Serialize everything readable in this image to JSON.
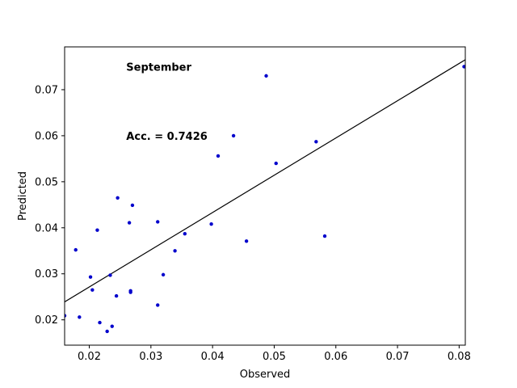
{
  "chart_data": {
    "type": "scatter",
    "xlabel": "Observed",
    "ylabel": "Predicted",
    "xlim": [
      0.016,
      0.081
    ],
    "ylim": [
      0.0145,
      0.0793
    ],
    "x_ticks": [
      0.02,
      0.03,
      0.04,
      0.05,
      0.06,
      0.07,
      0.08
    ],
    "x_tick_labels": [
      "0.02",
      "0.03",
      "0.04",
      "0.05",
      "0.06",
      "0.07",
      "0.08"
    ],
    "y_ticks": [
      0.02,
      0.03,
      0.04,
      0.05,
      0.06,
      0.07
    ],
    "y_tick_labels": [
      "0.02",
      "0.03",
      "0.04",
      "0.05",
      "0.06",
      "0.07"
    ],
    "grid": false,
    "point_color": "#0000cc",
    "line_color": "#000000",
    "annotations": [
      {
        "text": "September",
        "x": 0.026,
        "y": 0.075
      },
      {
        "text": "Acc. = 0.7426",
        "x": 0.026,
        "y": 0.06
      }
    ],
    "fit_line": {
      "x": [
        0.016,
        0.081
      ],
      "y": [
        0.0239,
        0.0765
      ]
    },
    "points": [
      {
        "x": 0.016,
        "y": 0.0209
      },
      {
        "x": 0.0178,
        "y": 0.0352
      },
      {
        "x": 0.0184,
        "y": 0.0206
      },
      {
        "x": 0.0202,
        "y": 0.0293
      },
      {
        "x": 0.0205,
        "y": 0.0265
      },
      {
        "x": 0.0213,
        "y": 0.0395
      },
      {
        "x": 0.0217,
        "y": 0.0194
      },
      {
        "x": 0.0229,
        "y": 0.0175
      },
      {
        "x": 0.0234,
        "y": 0.0297
      },
      {
        "x": 0.0237,
        "y": 0.0186
      },
      {
        "x": 0.0244,
        "y": 0.0252
      },
      {
        "x": 0.0246,
        "y": 0.0465
      },
      {
        "x": 0.0265,
        "y": 0.0411
      },
      {
        "x": 0.0267,
        "y": 0.0263
      },
      {
        "x": 0.0267,
        "y": 0.026
      },
      {
        "x": 0.027,
        "y": 0.0449
      },
      {
        "x": 0.0311,
        "y": 0.0413
      },
      {
        "x": 0.0311,
        "y": 0.0232
      },
      {
        "x": 0.032,
        "y": 0.0298
      },
      {
        "x": 0.0339,
        "y": 0.035
      },
      {
        "x": 0.0355,
        "y": 0.0387
      },
      {
        "x": 0.0398,
        "y": 0.0408
      },
      {
        "x": 0.0409,
        "y": 0.0556
      },
      {
        "x": 0.0434,
        "y": 0.06
      },
      {
        "x": 0.0455,
        "y": 0.0371
      },
      {
        "x": 0.0487,
        "y": 0.073
      },
      {
        "x": 0.0503,
        "y": 0.054
      },
      {
        "x": 0.0568,
        "y": 0.0587
      },
      {
        "x": 0.0582,
        "y": 0.0382
      },
      {
        "x": 0.0808,
        "y": 0.075
      }
    ]
  }
}
